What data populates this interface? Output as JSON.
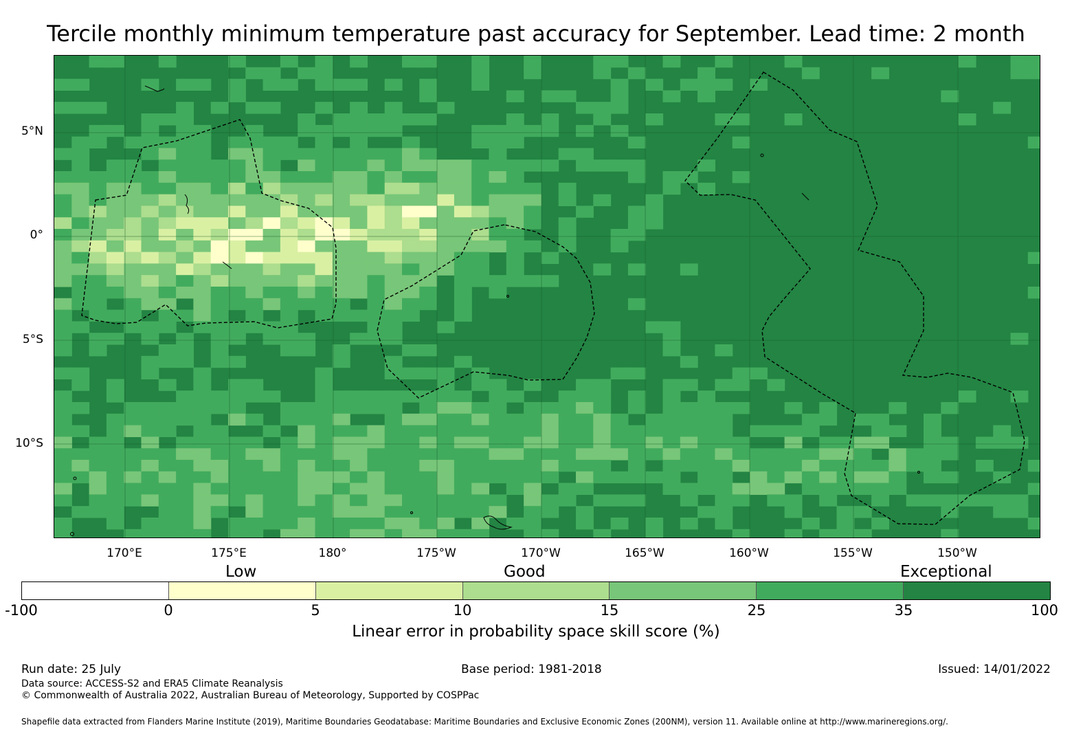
{
  "title": "Tercile monthly minimum temperature past accuracy for September. Lead time: 2 month",
  "map": {
    "lat_ticks": [
      "5°N",
      "0°",
      "5°S",
      "10°S"
    ],
    "lon_ticks": [
      "170°E",
      "175°E",
      "180°",
      "175°W",
      "170°W",
      "165°W",
      "160°W",
      "155°W",
      "150°W"
    ],
    "base_color": "#238443"
  },
  "categories": [
    "Low",
    "Good",
    "Exceptional"
  ],
  "colorbar": {
    "ticks": [
      "-100",
      "0",
      "5",
      "10",
      "15",
      "25",
      "35",
      "100"
    ],
    "colors": [
      "#ffffff",
      "#ffffcc",
      "#d9f0a3",
      "#addd8e",
      "#78c679",
      "#41ab5d",
      "#238443"
    ],
    "title": "Linear error in probability space skill score (%)"
  },
  "footer": {
    "run_date": "Run date: 25 July",
    "base_period": "Base period: 1981-2018",
    "issued": "Issued: 14/01/2022",
    "data_source": "Data source: ACCESS-S2 and ERA5 Climate Reanalysis",
    "copyright": "© Commonwealth of Australia 2022, Australian Bureau of Meteorology, Supported by COSPPac",
    "shapefile": "Shapefile data extracted from Flanders Marine Institute (2019), Maritime Boundaries Geodatabase: Maritime Boundaries and Exclusive Economic Zones (200NM), version 11. Available online at http://www.marineregions.org/."
  }
}
